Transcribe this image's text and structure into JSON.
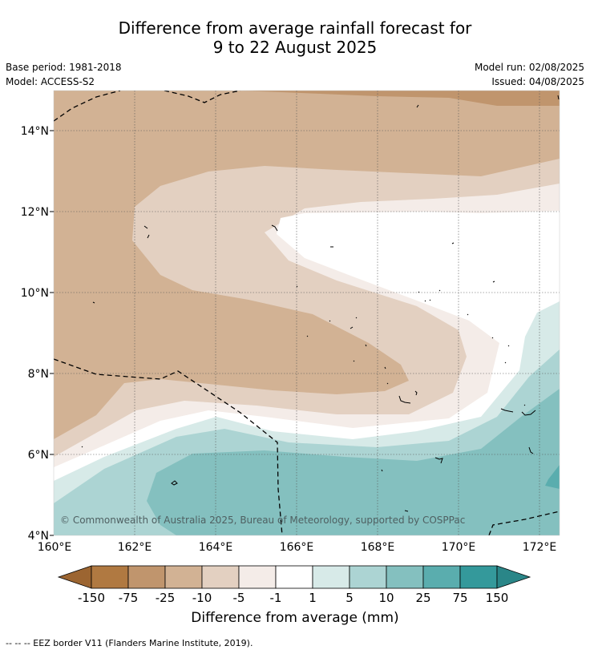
{
  "title_line1": "Difference from average rainfall forecast for",
  "title_line2": "9 to 22 August 2025",
  "base_period": "Base period: 1981-2018",
  "model": "Model: ACCESS-S2",
  "model_run": "Model run: 02/08/2025",
  "issued": "Issued: 04/08/2025",
  "copyright": "© Commonwealth of Australia 2025, Bureau of Meteorology, supported by COSPPac",
  "map": {
    "lon_range": [
      160,
      172.5
    ],
    "lat_range": [
      4,
      15
    ],
    "lon_ticks": [
      "160°E",
      "162°E",
      "164°E",
      "166°E",
      "168°E",
      "170°E",
      "172°E"
    ],
    "lat_ticks": [
      "4°N",
      "6°N",
      "8°N",
      "10°N",
      "12°N",
      "14°N"
    ],
    "grid": "dotted"
  },
  "colorbar": {
    "label": "Difference from average (mm)",
    "ticks": [
      "-150",
      "-75",
      "-25",
      "-10",
      "-5",
      "-1",
      "1",
      "5",
      "10",
      "25",
      "75",
      "150"
    ],
    "colors": [
      "#9c6531",
      "#b07941",
      "#c0956d",
      "#d2b294",
      "#e3d0c1",
      "#f4ece8",
      "#ffffff",
      "#d7eae8",
      "#acd4d3",
      "#84c0bf",
      "#5aadae",
      "#34999b",
      "#2a8688"
    ]
  },
  "legend_note": "--  --  -- EEZ border V11 (Flanders Marine Institute, 2019)."
}
